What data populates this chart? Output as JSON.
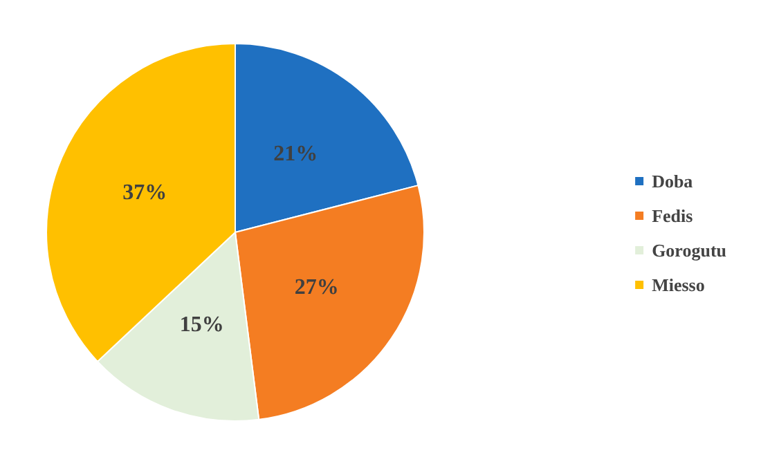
{
  "chart_data": {
    "type": "pie",
    "categories": [
      "Doba",
      "Fedis",
      "Gorogutu",
      "Miesso"
    ],
    "values": [
      21,
      27,
      15,
      37
    ],
    "value_labels": [
      "21%",
      "27%",
      "15%",
      "37%"
    ],
    "colors": [
      "#1f70c1",
      "#f47d22",
      "#e2efda",
      "#ffc000"
    ],
    "legend": "right"
  }
}
